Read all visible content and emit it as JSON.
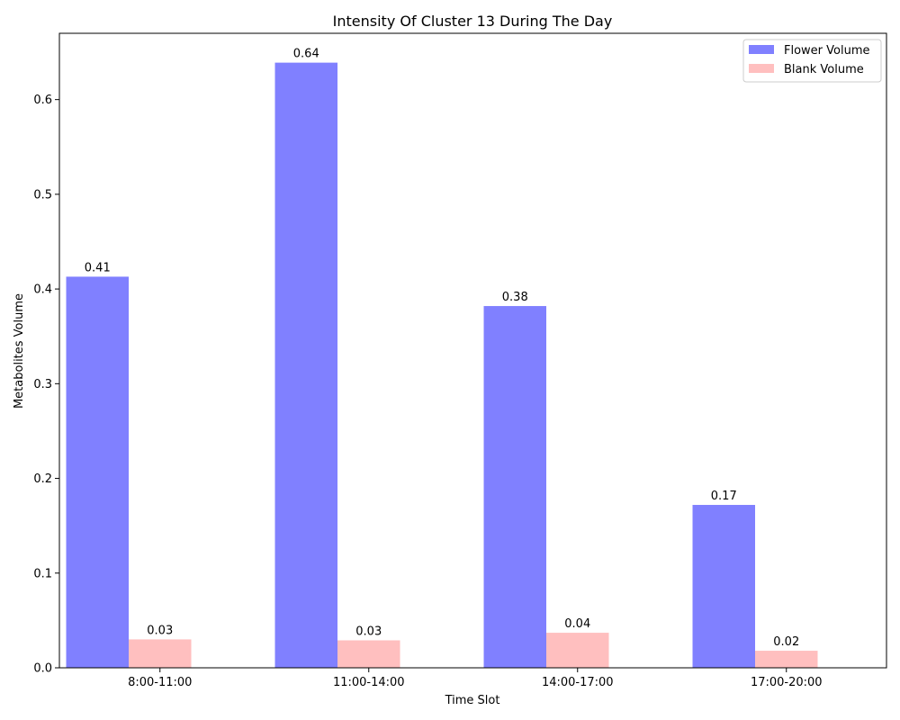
{
  "chart_data": {
    "type": "bar",
    "title": "Intensity Of Cluster 13 During The Day",
    "xlabel": "Time Slot",
    "ylabel": "Metabolites Volume",
    "categories": [
      "8:00-11:00",
      "11:00-14:00",
      "14:00-17:00",
      "17:00-20:00"
    ],
    "series": [
      {
        "name": "Flower Volume",
        "color": "#8080ff",
        "values": [
          0.413,
          0.639,
          0.382,
          0.172
        ],
        "labels": [
          "0.41",
          "0.64",
          "0.38",
          "0.17"
        ]
      },
      {
        "name": "Blank Volume",
        "color": "#ffbfbf",
        "values": [
          0.03,
          0.029,
          0.037,
          0.018
        ],
        "labels": [
          "0.03",
          "0.03",
          "0.04",
          "0.02"
        ]
      }
    ],
    "ylim": [
      0,
      0.67
    ],
    "yticks": [
      "0.0",
      "0.1",
      "0.2",
      "0.3",
      "0.4",
      "0.5",
      "0.6"
    ],
    "grid": false,
    "legend_position": "top-right"
  }
}
